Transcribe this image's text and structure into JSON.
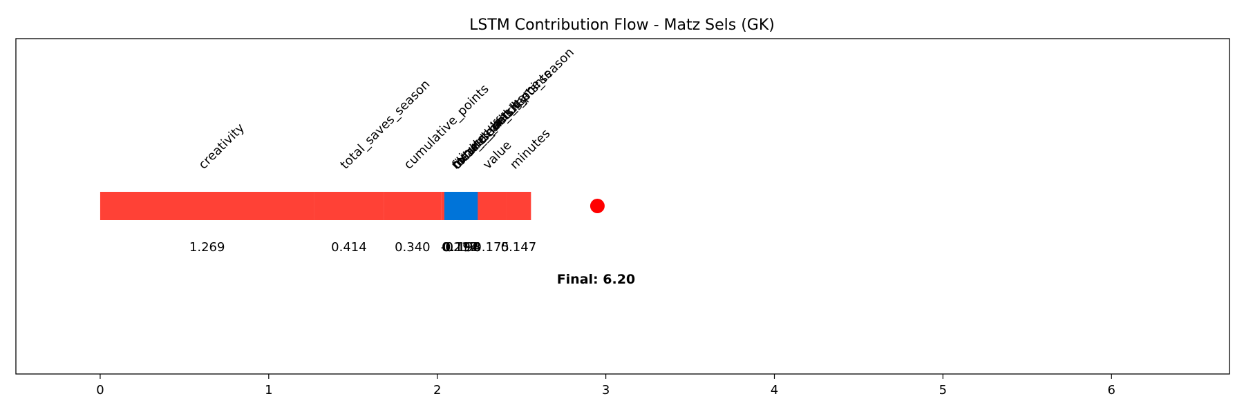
{
  "chart_data": {
    "type": "bar",
    "title": "LSTM Contribution Flow - Matz Sels (GK)",
    "xlabel": "",
    "ylabel": "",
    "xlim": [
      -0.5,
      6.7
    ],
    "xticks": [
      0,
      1,
      2,
      3,
      4,
      5,
      6
    ],
    "grid": false,
    "contributions": [
      {
        "feature": "creativity",
        "value": 1.269
      },
      {
        "feature": "total_saves_season",
        "value": 0.414
      },
      {
        "feature": "cumulative_points",
        "value": 0.34
      },
      {
        "feature": "minutes_last_game",
        "value": 0.217
      },
      {
        "feature": "total_clean_sheets_season",
        "value": -0.198
      },
      {
        "feature": "fixture_difficulty",
        "value": 0.194
      },
      {
        "feature": "clean_sheets",
        "value": -0.194
      },
      {
        "feature": "current_match_points",
        "value": 0.192
      },
      {
        "feature": "value",
        "value": 0.175
      },
      {
        "feature": "minutes",
        "value": 0.147
      }
    ],
    "end_marker": 2.95,
    "final_label": "Final: 6.20",
    "colors": {
      "positive": "#ff4136",
      "negative": "#0074d9",
      "marker": "#ff0000"
    }
  }
}
